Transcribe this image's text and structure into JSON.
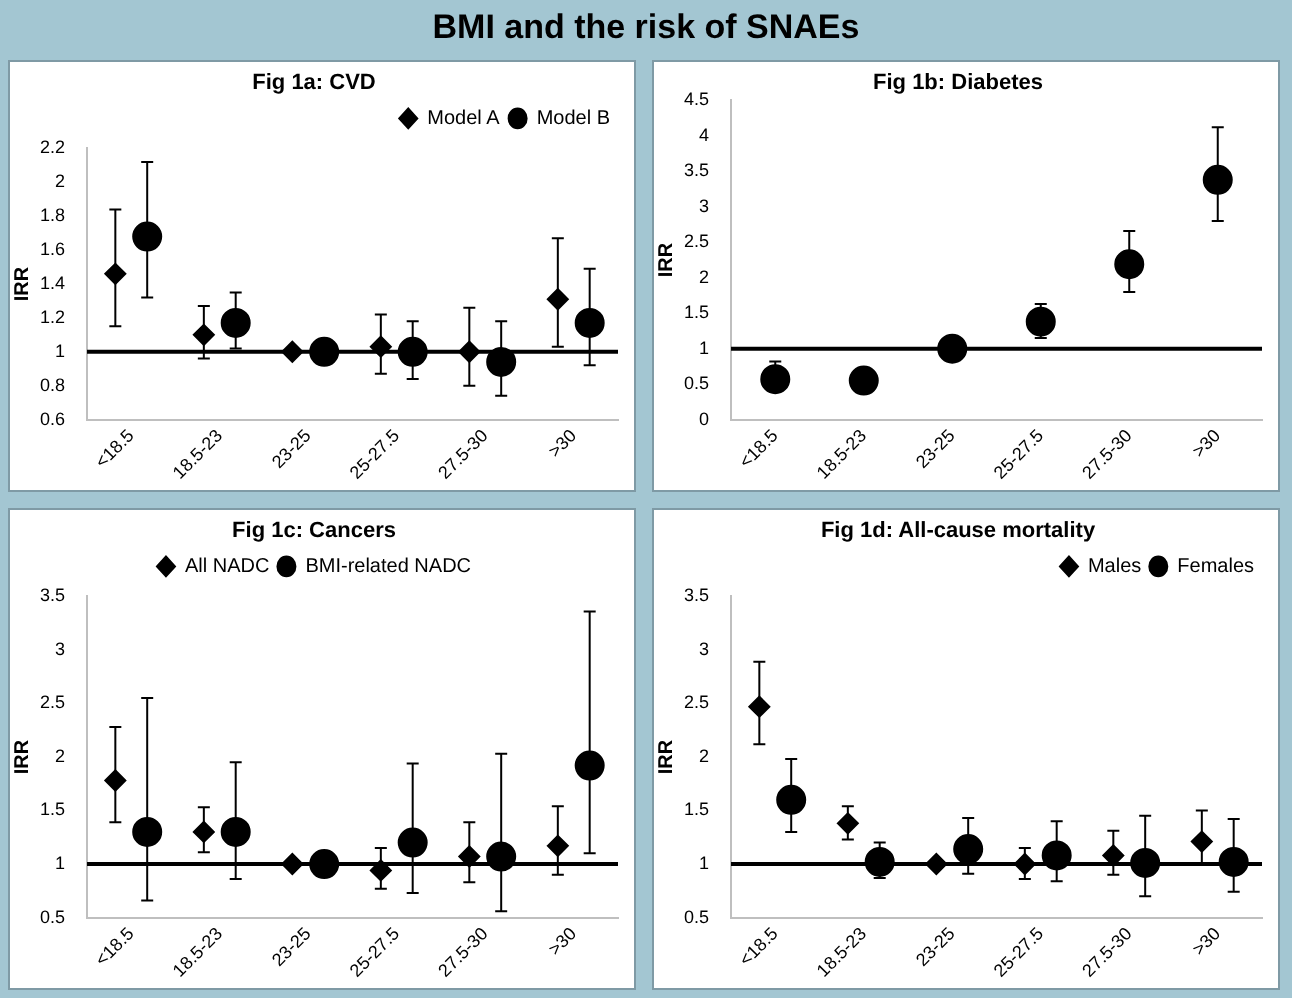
{
  "chart_data": [
    {
      "type": "scatter",
      "title": "BMI and the risk of SNAEs",
      "subtitle": "Fig 1a: CVD",
      "ylabel": "IRR",
      "categories": [
        "<18.5",
        "18.5-23",
        "23-25",
        "25-27.5",
        "27.5-30",
        ">30"
      ],
      "ylim": [
        0.6,
        2.2
      ],
      "yticks": [
        0.6,
        0.8,
        1,
        1.2,
        1.4,
        1.6,
        1.8,
        2,
        2.2
      ],
      "grid": false,
      "legend": "top right",
      "ref_lines": [
        {
          "axis": "y",
          "value": 1,
          "color": "#000000"
        }
      ],
      "series": [
        {
          "name": "Model A",
          "color": "#000000",
          "marker": "diamond",
          "values": [
            1.46,
            1.1,
            1.0,
            1.03,
            1.0,
            1.31
          ],
          "errors": [
            [
              1.15,
              1.84
            ],
            [
              0.96,
              1.27
            ],
            null,
            [
              0.87,
              1.22
            ],
            [
              0.8,
              1.26
            ],
            [
              1.03,
              1.67
            ]
          ]
        },
        {
          "name": "Model B",
          "color": "#000000",
          "marker": "circle",
          "values": [
            1.68,
            1.17,
            1.0,
            1.0,
            0.94,
            1.17
          ],
          "errors": [
            [
              1.32,
              2.12
            ],
            [
              1.02,
              1.35
            ],
            null,
            [
              0.84,
              1.18
            ],
            [
              0.74,
              1.18
            ],
            [
              0.92,
              1.49
            ]
          ]
        }
      ]
    },
    {
      "type": "scatter",
      "subtitle": "Fig 1b: Diabetes",
      "ylabel": "IRR",
      "categories": [
        "<18.5",
        "18.5-23",
        "23-25",
        "25-27.5",
        "27.5-30",
        ">30"
      ],
      "ylim": [
        0,
        4.5
      ],
      "yticks": [
        0,
        0.5,
        1,
        1.5,
        2,
        2.5,
        3,
        3.5,
        4,
        4.5
      ],
      "grid": false,
      "ref_lines": [
        {
          "axis": "y",
          "value": 1,
          "color": "#000000"
        }
      ],
      "series": [
        {
          "color": "#000000",
          "marker": "circle",
          "values": [
            0.57,
            0.55,
            1.0,
            1.38,
            2.19,
            3.38
          ],
          "errors": [
            [
              0.4,
              0.82
            ],
            [
              0.42,
              0.55
            ],
            null,
            [
              1.15,
              1.63
            ],
            [
              1.8,
              2.66
            ],
            [
              2.8,
              4.12
            ]
          ]
        }
      ]
    },
    {
      "type": "scatter",
      "subtitle": "Fig 1c: Cancers",
      "ylabel": "IRR",
      "categories": [
        "<18.5",
        "18.5-23",
        "23-25",
        "25-27.5",
        "27.5-30",
        ">30"
      ],
      "ylim": [
        0.5,
        3.5
      ],
      "yticks": [
        0.5,
        1,
        1.5,
        2,
        2.5,
        3,
        3.5
      ],
      "grid": false,
      "legend": "top",
      "ref_lines": [
        {
          "axis": "y",
          "value": 1,
          "color": "#000000"
        }
      ],
      "series": [
        {
          "name": "All NADC",
          "color": "#000000",
          "marker": "diamond",
          "values": [
            1.78,
            1.3,
            1.0,
            0.94,
            1.07,
            1.17
          ],
          "errors": [
            [
              1.39,
              2.28
            ],
            [
              1.11,
              1.53
            ],
            null,
            [
              0.77,
              1.15
            ],
            [
              0.83,
              1.39
            ],
            [
              0.9,
              1.54
            ]
          ]
        },
        {
          "name": "BMI-related NADC",
          "color": "#000000",
          "marker": "circle",
          "values": [
            1.3,
            1.3,
            1.0,
            1.2,
            1.07,
            1.92
          ],
          "errors": [
            [
              0.66,
              2.55
            ],
            [
              0.86,
              1.95
            ],
            null,
            [
              0.73,
              1.94
            ],
            [
              0.56,
              2.03
            ],
            [
              1.1,
              3.36
            ]
          ]
        }
      ]
    },
    {
      "type": "scatter",
      "subtitle": "Fig 1d: All-cause mortality",
      "ylabel": "IRR",
      "categories": [
        "<18.5",
        "18.5-23",
        "23-25",
        "25-27.5",
        "27.5-30",
        ">30"
      ],
      "ylim": [
        0.5,
        3.5
      ],
      "yticks": [
        0.5,
        1,
        1.5,
        2,
        2.5,
        3,
        3.5
      ],
      "grid": false,
      "legend": "top right",
      "ref_lines": [
        {
          "axis": "y",
          "value": 1,
          "color": "#000000"
        }
      ],
      "series": [
        {
          "name": "Males",
          "color": "#000000",
          "marker": "diamond",
          "values": [
            2.47,
            1.38,
            1.0,
            1.0,
            1.08,
            1.21
          ],
          "errors": [
            [
              2.12,
              2.89
            ],
            [
              1.23,
              1.54
            ],
            null,
            [
              0.86,
              1.15
            ],
            [
              0.9,
              1.31
            ],
            [
              1.0,
              1.5
            ]
          ]
        },
        {
          "name": "Females",
          "color": "#000000",
          "marker": "circle",
          "values": [
            1.6,
            1.02,
            1.14,
            1.08,
            1.01,
            1.02
          ],
          "errors": [
            [
              1.3,
              1.98
            ],
            [
              0.87,
              1.2
            ],
            [
              0.91,
              1.43
            ],
            [
              0.84,
              1.4
            ],
            [
              0.7,
              1.45
            ],
            [
              0.74,
              1.42
            ]
          ]
        }
      ]
    }
  ]
}
